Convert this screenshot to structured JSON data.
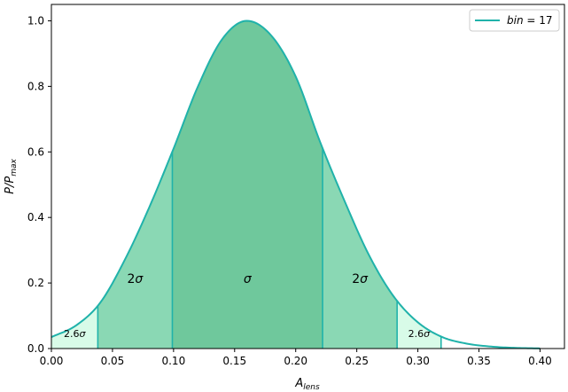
{
  "chart_data": {
    "type": "area",
    "xlabel": "A",
    "xlabel_sub": "lens",
    "ylabel": "P/P",
    "ylabel_sub": "max",
    "xlim": [
      0.0,
      0.42
    ],
    "ylim": [
      0.0,
      1.05
    ],
    "xticks": [
      0.0,
      0.05,
      0.1,
      0.15,
      0.2,
      0.25,
      0.3,
      0.35,
      0.4
    ],
    "xtick_labels": [
      "0.00",
      "0.05",
      "0.10",
      "0.15",
      "0.20",
      "0.25",
      "0.30",
      "0.35",
      "0.40"
    ],
    "yticks": [
      0.0,
      0.2,
      0.4,
      0.6,
      0.8,
      1.0
    ],
    "ytick_labels": [
      "0.0",
      "0.2",
      "0.4",
      "0.6",
      "0.8",
      "1.0"
    ],
    "grid": false,
    "legend": {
      "placement": "top-right",
      "entries": [
        {
          "name": "bin = 17",
          "name_parts": [
            "bin",
            " = 17"
          ],
          "color": "#20b2aa"
        }
      ]
    },
    "series": [
      {
        "name": "bin = 17",
        "color": "#20b2aa",
        "x": [
          0.0,
          0.02,
          0.04,
          0.06,
          0.08,
          0.1,
          0.12,
          0.14,
          0.16,
          0.18,
          0.2,
          0.22,
          0.24,
          0.26,
          0.28,
          0.3,
          0.32,
          0.34,
          0.36,
          0.38,
          0.4
        ],
        "y": [
          0.035,
          0.07,
          0.14,
          0.27,
          0.43,
          0.61,
          0.8,
          0.945,
          1.0,
          0.955,
          0.83,
          0.63,
          0.45,
          0.285,
          0.16,
          0.08,
          0.035,
          0.015,
          0.006,
          0.002,
          0.0005
        ]
      }
    ],
    "bands": [
      {
        "label": "2.6σ",
        "x_start": 0.0,
        "x_end": 0.038,
        "color": "#d8fbe8"
      },
      {
        "label": "2σ",
        "x_start": 0.038,
        "x_end": 0.099,
        "color": "#8ad8b4"
      },
      {
        "label": "σ",
        "x_start": 0.099,
        "x_end": 0.222,
        "color": "#6fc89c"
      },
      {
        "label": "2σ",
        "x_start": 0.222,
        "x_end": 0.283,
        "color": "#8ad8b4"
      },
      {
        "label": "2.6σ",
        "x_start": 0.283,
        "x_end": 0.319,
        "color": "#d8fbe8"
      }
    ]
  }
}
